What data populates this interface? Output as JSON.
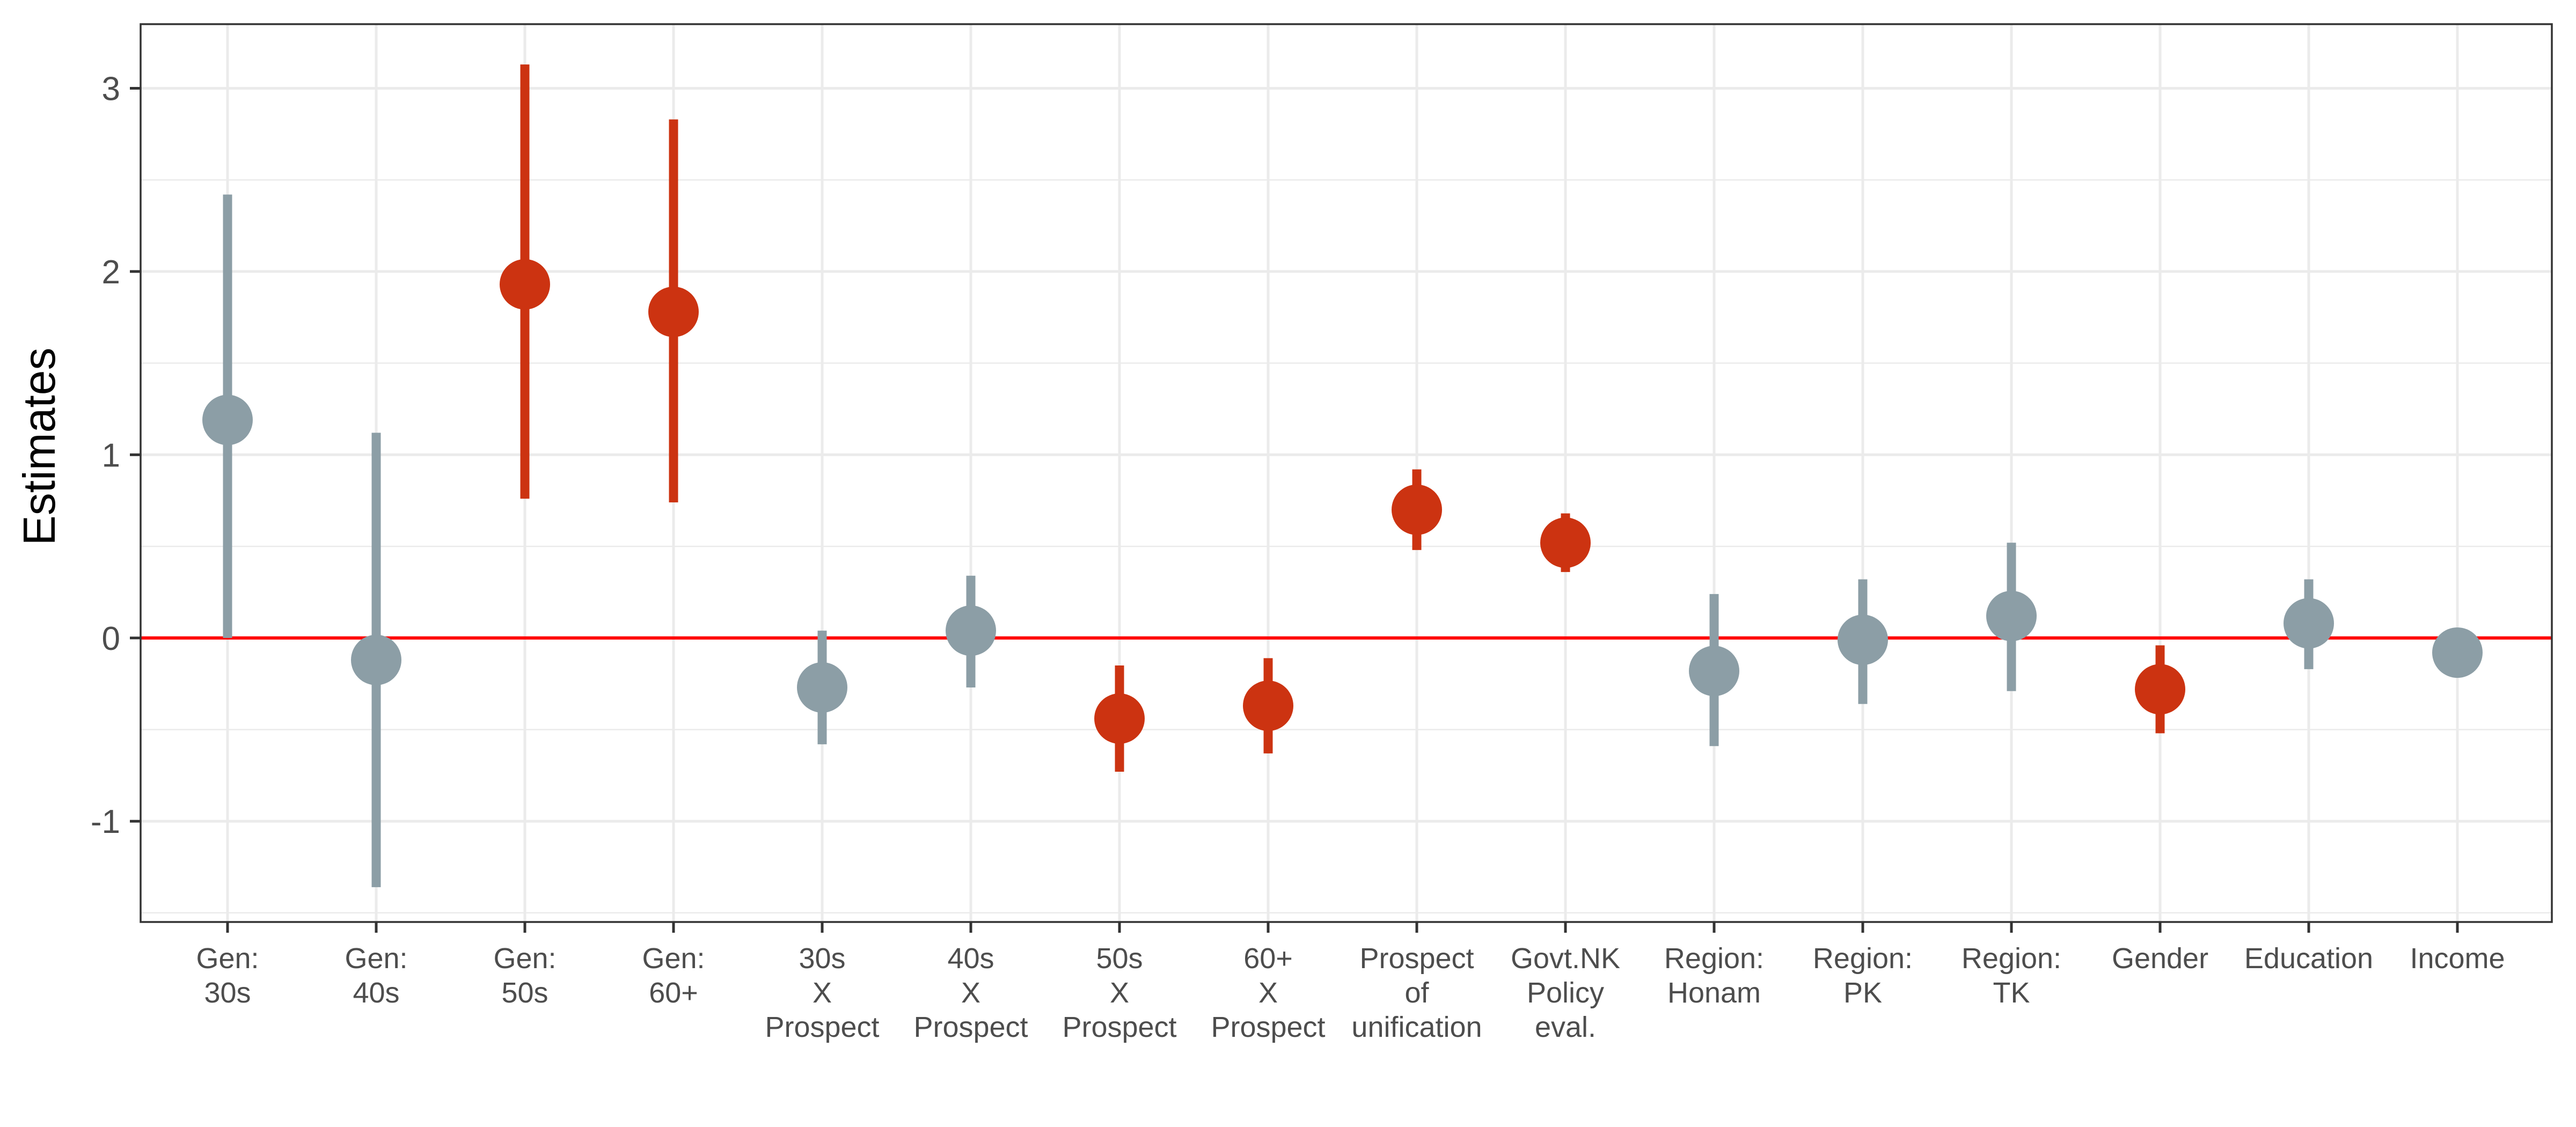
{
  "chart_data": {
    "type": "scatter",
    "subtype": "point-range coefficient plot",
    "title": "",
    "xlabel": "",
    "ylabel": "Estimates",
    "ylim": [
      -1.55,
      3.35
    ],
    "yticks": [
      -1,
      0,
      1,
      2,
      3
    ],
    "ytick_labels": [
      "-1",
      "0",
      "1",
      "2",
      "3"
    ],
    "grid": true,
    "legend": "none",
    "reference_line": {
      "y": 0,
      "color": "#ff0000"
    },
    "colors": {
      "significant": "#cc3311",
      "not_significant": "#8c9ea6"
    },
    "categories": [
      [
        "Gen:",
        "30s"
      ],
      [
        "Gen:",
        "40s"
      ],
      [
        "Gen:",
        "50s"
      ],
      [
        "Gen:",
        "60+"
      ],
      [
        "30s",
        "X",
        "Prospect"
      ],
      [
        "40s",
        "X",
        "Prospect"
      ],
      [
        "50s",
        "X",
        "Prospect"
      ],
      [
        "60+",
        "X",
        "Prospect"
      ],
      [
        "Prospect",
        "of",
        "unification"
      ],
      [
        "Govt.NK",
        "Policy",
        "eval."
      ],
      [
        "Region:",
        "Honam"
      ],
      [
        "Region:",
        "PK"
      ],
      [
        "Region:",
        "TK"
      ],
      [
        "Gender"
      ],
      [
        "Education"
      ],
      [
        "Income"
      ]
    ],
    "estimates": [
      1.19,
      -0.12,
      1.93,
      1.78,
      -0.27,
      0.04,
      -0.44,
      -0.37,
      0.7,
      0.52,
      -0.18,
      -0.01,
      0.12,
      -0.28,
      0.08,
      -0.08
    ],
    "lower": [
      0.0,
      -1.36,
      0.76,
      0.74,
      -0.58,
      -0.27,
      -0.73,
      -0.63,
      0.48,
      0.36,
      -0.59,
      -0.36,
      -0.29,
      -0.52,
      -0.17,
      -0.08
    ],
    "upper": [
      2.42,
      1.12,
      3.13,
      2.83,
      0.04,
      0.34,
      -0.15,
      -0.11,
      0.92,
      0.68,
      0.24,
      0.32,
      0.52,
      -0.04,
      0.32,
      -0.08
    ],
    "significant": [
      false,
      false,
      true,
      true,
      false,
      false,
      true,
      true,
      true,
      true,
      false,
      false,
      false,
      true,
      false,
      false
    ]
  }
}
